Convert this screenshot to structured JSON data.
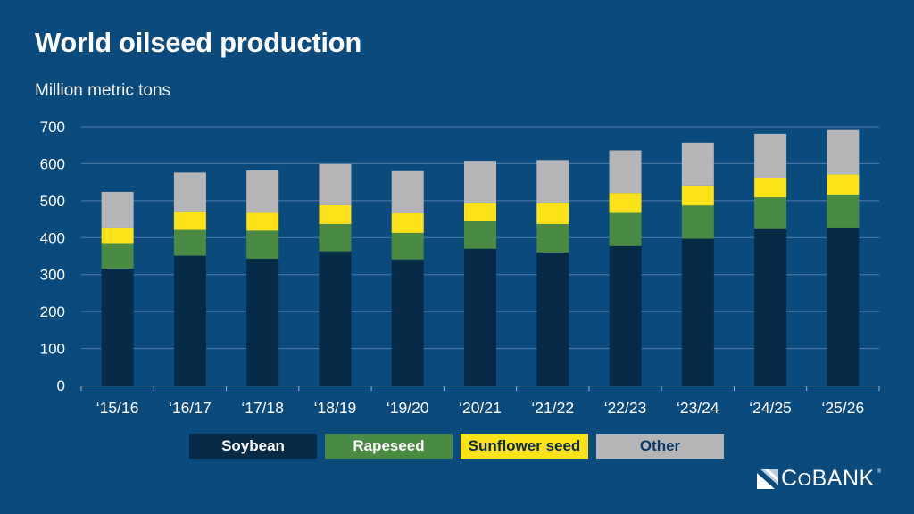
{
  "header": {
    "title": "World oilseed production",
    "subtitle": "Million metric tons"
  },
  "colors": {
    "background": "#0b4a7c",
    "gridline": "#4f7ea8",
    "axis": "#9db7cf",
    "soybean": "#072a47",
    "rapeseed": "#4a8a43",
    "sunflower": "#fde21a",
    "other": "#b5b5b8"
  },
  "chart_data": {
    "type": "bar",
    "stacked": true,
    "title": "World oilseed production",
    "subtitle": "Million metric tons",
    "xlabel": "",
    "ylabel": "Million metric tons",
    "ylim": [
      0,
      700
    ],
    "yticks": [
      0,
      100,
      200,
      300,
      400,
      500,
      600,
      700
    ],
    "grid": true,
    "legend_position": "bottom",
    "categories": [
      "‘15/16",
      "‘16/17",
      "‘17/18",
      "‘18/19",
      "‘19/20",
      "‘20/21",
      "‘21/22",
      "‘22/23",
      "‘23/24",
      "‘24/25",
      "‘25/26"
    ],
    "series": [
      {
        "name": "Soybean",
        "color_key": "soybean",
        "values": [
          316,
          351,
          343,
          363,
          341,
          370,
          360,
          377,
          397,
          423,
          425
        ]
      },
      {
        "name": "Rapeseed",
        "color_key": "rapeseed",
        "values": [
          69,
          70,
          76,
          74,
          72,
          74,
          77,
          90,
          90,
          86,
          91
        ]
      },
      {
        "name": "Sunflower seed",
        "color_key": "sunflower",
        "values": [
          40,
          48,
          48,
          51,
          53,
          49,
          56,
          54,
          54,
          53,
          55
        ]
      },
      {
        "name": "Other",
        "color_key": "other",
        "values": [
          99,
          107,
          115,
          111,
          114,
          115,
          117,
          115,
          116,
          119,
          120
        ]
      }
    ]
  },
  "legend": [
    {
      "label": "Soybean",
      "bg": "#072a47",
      "fg": "#ffffff"
    },
    {
      "label": "Rapeseed",
      "bg": "#4a8a43",
      "fg": "#ffffff"
    },
    {
      "label": "Sunflower seed",
      "bg": "#fde21a",
      "fg": "#0a2a48"
    },
    {
      "label": "Other",
      "bg": "#b5b5b8",
      "fg": "#0a3a66"
    }
  ],
  "logo": {
    "text_prefix": "C",
    "text_small": "O",
    "text_suffix": "BANK",
    "registered": "®",
    "icon": "cobank-logo-icon"
  }
}
